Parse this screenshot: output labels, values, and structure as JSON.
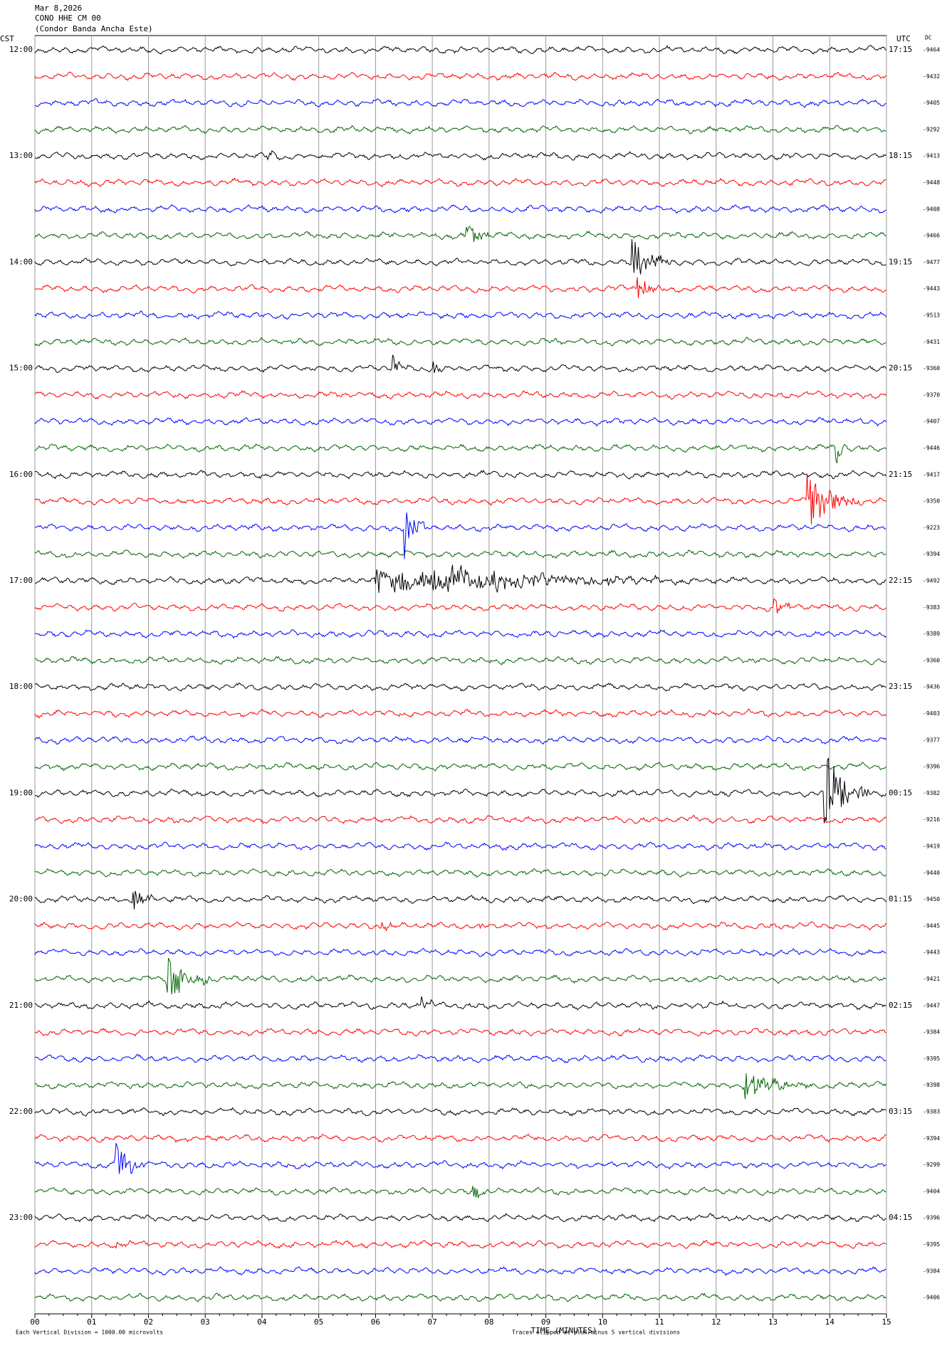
{
  "header": {
    "lines": [
      "Mar 8,2026",
      "CONO HHE CM 00",
      "(Condor Banda Ancha Este)"
    ]
  },
  "left_axis_title": "CST",
  "right_axis_title": "UTC",
  "dc_title": "DC",
  "cst_labels": [
    "12:00",
    "13:00",
    "14:00",
    "15:00",
    "16:00",
    "17:00",
    "18:00",
    "19:00",
    "20:00",
    "21:00",
    "22:00",
    "23:00"
  ],
  "utc_labels": [
    "17:15",
    "18:15",
    "19:15",
    "20:15",
    "21:15",
    "22:15",
    "23:15",
    "00:15",
    "01:15",
    "02:15",
    "03:15",
    "04:15"
  ],
  "dc_values": [
    "-9464",
    "-9432",
    "-9405",
    "-9292",
    "-9413",
    "-9448",
    "-9408",
    "-9466",
    "-9477",
    "-9443",
    "-9513",
    "-9431",
    "-9360",
    "-9370",
    "-9407",
    "-9446",
    "-9417",
    "-9350",
    "-9223",
    "-9394",
    "-9492",
    "-9383",
    "-9389",
    "-9360",
    "-9436",
    "-9403",
    "-9377",
    "-9396",
    "-9382",
    "-9216",
    "-9419",
    "-9440",
    "-9450",
    "-9445",
    "-9443",
    "-9421",
    "-9447",
    "-9384",
    "-9395",
    "-9398",
    "-9383",
    "-9394",
    "-9299",
    "-9404",
    "-9396",
    "-9395",
    "-9384",
    "-9406"
  ],
  "x_ticks": [
    "00",
    "01",
    "02",
    "03",
    "04",
    "05",
    "06",
    "07",
    "08",
    "09",
    "10",
    "11",
    "12",
    "13",
    "14",
    "15"
  ],
  "x_axis_title": "TIME (MINUTES)",
  "footer_left": "Each Vertical Division = 1000.00 microvolts",
  "footer_right": "Traces clipped at plus/minus 5 vertical divisions"
}
